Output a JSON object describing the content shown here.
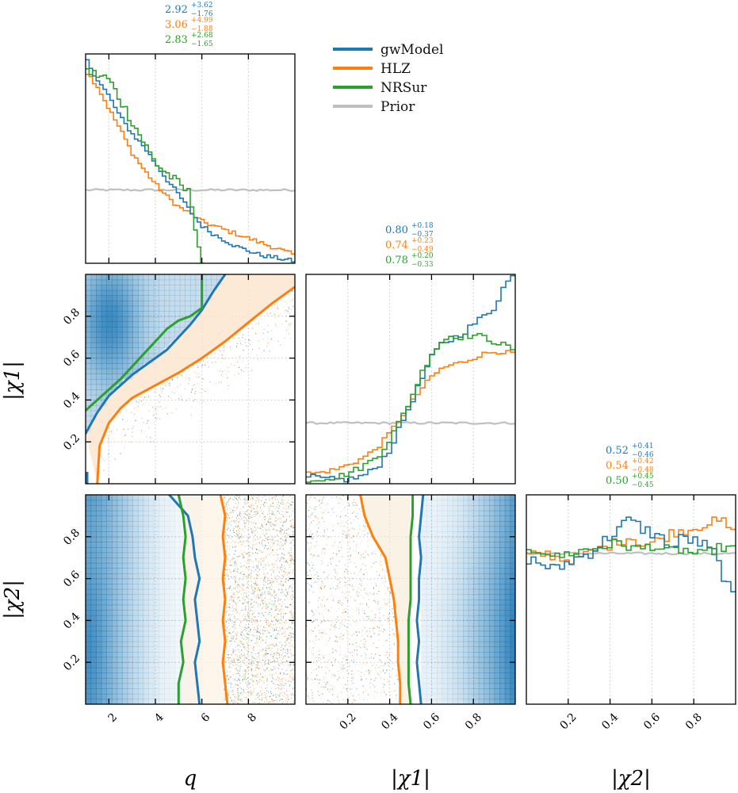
{
  "chart_data": {
    "type": "corner",
    "parameters": [
      {
        "name": "q",
        "label": "q",
        "range": [
          1,
          10
        ],
        "ticks": [
          "2",
          "4",
          "6",
          "8"
        ],
        "tick_values": [
          2,
          4,
          6,
          8
        ]
      },
      {
        "name": "chi1",
        "label": "|χ1|",
        "range": [
          0,
          1
        ],
        "ticks": [
          "0.2",
          "0.4",
          "0.6",
          "0.8"
        ],
        "tick_values": [
          0.2,
          0.4,
          0.6,
          0.8
        ]
      },
      {
        "name": "chi2",
        "label": "|χ2|",
        "range": [
          0,
          1
        ],
        "ticks": [
          "0.2",
          "0.4",
          "0.6",
          "0.8"
        ],
        "tick_values": [
          0.2,
          0.4,
          0.6,
          0.8
        ]
      }
    ],
    "legend": {
      "placement": "top-center",
      "entries": [
        {
          "name": "gwModel",
          "color": "#1f77b4"
        },
        {
          "name": "HLZ",
          "color": "#ff7f0e"
        },
        {
          "name": "NRSur",
          "color": "#2ca02c"
        },
        {
          "name": "Prior",
          "color": "#bfbfbf"
        }
      ]
    },
    "summary_stats": {
      "q": [
        {
          "series": "gwModel",
          "median": "2.92",
          "plus": "+3.62",
          "minus": "−1.76",
          "color": "#1f77b4"
        },
        {
          "series": "HLZ",
          "median": "3.06",
          "plus": "+4.99",
          "minus": "−1.88",
          "color": "#ff7f0e"
        },
        {
          "series": "NRSur",
          "median": "2.83",
          "plus": "+2.68",
          "minus": "−1.65",
          "color": "#2ca02c"
        }
      ],
      "chi1": [
        {
          "series": "gwModel",
          "median": "0.80",
          "plus": "+0.18",
          "minus": "−0.37",
          "color": "#1f77b4"
        },
        {
          "series": "HLZ",
          "median": "0.74",
          "plus": "+0.23",
          "minus": "−0.49",
          "color": "#ff7f0e"
        },
        {
          "series": "NRSur",
          "median": "0.78",
          "plus": "+0.20",
          "minus": "−0.33",
          "color": "#2ca02c"
        }
      ],
      "chi2": [
        {
          "series": "gwModel",
          "median": "0.52",
          "plus": "+0.41",
          "minus": "−0.46",
          "color": "#1f77b4"
        },
        {
          "series": "HLZ",
          "median": "0.54",
          "plus": "+0.42",
          "minus": "−0.48",
          "color": "#ff7f0e"
        },
        {
          "series": "NRSur",
          "median": "0.50",
          "plus": "+0.45",
          "minus": "−0.45",
          "color": "#2ca02c"
        }
      ]
    },
    "histograms": {
      "q": {
        "x": [
          1.0,
          1.5,
          2.0,
          2.5,
          3.0,
          3.5,
          4.0,
          4.5,
          5.0,
          5.5,
          6.0,
          6.5,
          7.0,
          7.5,
          8.0,
          8.5,
          9.0,
          9.5,
          10.0
        ],
        "gwModel": [
          0.98,
          0.88,
          0.8,
          0.7,
          0.62,
          0.56,
          0.48,
          0.4,
          0.33,
          0.25,
          0.18,
          0.14,
          0.11,
          0.08,
          0.06,
          0.04,
          0.03,
          0.02,
          0.01
        ],
        "HLZ": [
          0.92,
          0.85,
          0.74,
          0.64,
          0.53,
          0.45,
          0.38,
          0.32,
          0.27,
          0.24,
          0.2,
          0.18,
          0.16,
          0.14,
          0.12,
          0.1,
          0.08,
          0.06,
          0.04
        ],
        "NRSur": [
          0.92,
          0.9,
          0.88,
          0.78,
          0.68,
          0.58,
          0.48,
          0.43,
          0.38,
          0.33,
          0.0
        ],
        "Prior": 0.35
      },
      "chi1": {
        "x": [
          0.0,
          0.05,
          0.1,
          0.15,
          0.2,
          0.25,
          0.3,
          0.35,
          0.4,
          0.45,
          0.5,
          0.55,
          0.6,
          0.65,
          0.7,
          0.75,
          0.8,
          0.85,
          0.9,
          0.95,
          1.0
        ],
        "gwModel": [
          0.03,
          0.03,
          0.02,
          0.02,
          0.02,
          0.03,
          0.05,
          0.09,
          0.16,
          0.27,
          0.38,
          0.49,
          0.6,
          0.67,
          0.69,
          0.72,
          0.76,
          0.8,
          0.84,
          0.95,
          1.0
        ],
        "HLZ": [
          0.05,
          0.05,
          0.06,
          0.07,
          0.09,
          0.11,
          0.14,
          0.18,
          0.24,
          0.31,
          0.38,
          0.45,
          0.51,
          0.55,
          0.57,
          0.58,
          0.6,
          0.62,
          0.63,
          0.63,
          0.62
        ],
        "NRSur": [
          0.02,
          0.02,
          0.03,
          0.03,
          0.05,
          0.07,
          0.1,
          0.14,
          0.21,
          0.3,
          0.4,
          0.52,
          0.62,
          0.68,
          0.71,
          0.7,
          0.71,
          0.7,
          0.68,
          0.66,
          0.64
        ],
        "Prior": 0.29
      },
      "chi2": {
        "x": [
          0.0,
          0.05,
          0.1,
          0.15,
          0.2,
          0.25,
          0.3,
          0.35,
          0.4,
          0.45,
          0.5,
          0.55,
          0.6,
          0.65,
          0.7,
          0.75,
          0.8,
          0.85,
          0.9,
          0.95,
          1.0
        ],
        "gwModel": [
          0.7,
          0.68,
          0.66,
          0.64,
          0.68,
          0.7,
          0.72,
          0.76,
          0.8,
          0.85,
          0.88,
          0.84,
          0.82,
          0.79,
          0.74,
          0.8,
          0.78,
          0.76,
          0.72,
          0.6,
          0.48
        ],
        "HLZ": [
          0.71,
          0.71,
          0.72,
          0.7,
          0.69,
          0.7,
          0.72,
          0.74,
          0.76,
          0.78,
          0.8,
          0.76,
          0.77,
          0.79,
          0.82,
          0.83,
          0.84,
          0.86,
          0.87,
          0.87,
          0.8
        ],
        "NRSur": [
          0.72,
          0.74,
          0.73,
          0.7,
          0.72,
          0.73,
          0.74,
          0.75,
          0.76,
          0.77,
          0.75,
          0.74,
          0.76,
          0.74,
          0.73,
          0.74,
          0.72,
          0.71,
          0.74,
          0.75,
          0.74
        ],
        "Prior": 0.72
      }
    },
    "contours": {
      "q_chi1": {
        "gwModel": [
          [
            1.0,
            0.24
          ],
          [
            1.5,
            0.34
          ],
          [
            2.0,
            0.42
          ],
          [
            2.5,
            0.47
          ],
          [
            3.0,
            0.52
          ],
          [
            3.5,
            0.56
          ],
          [
            4.0,
            0.6
          ],
          [
            4.5,
            0.64
          ],
          [
            5.0,
            0.7
          ],
          [
            5.5,
            0.76
          ],
          [
            6.0,
            0.83
          ],
          [
            6.5,
            0.92
          ],
          [
            7.0,
            1.0
          ]
        ],
        "HLZ": [
          [
            1.5,
            0.0
          ],
          [
            1.6,
            0.18
          ],
          [
            2.0,
            0.29
          ],
          [
            2.5,
            0.36
          ],
          [
            3.0,
            0.41
          ],
          [
            4.0,
            0.47
          ],
          [
            5.0,
            0.53
          ],
          [
            6.0,
            0.6
          ],
          [
            7.0,
            0.68
          ],
          [
            8.0,
            0.77
          ],
          [
            9.0,
            0.86
          ],
          [
            10.0,
            0.94
          ]
        ],
        "NRSur": [
          [
            1.0,
            0.35
          ],
          [
            1.5,
            0.4
          ],
          [
            2.0,
            0.45
          ],
          [
            2.5,
            0.5
          ],
          [
            3.0,
            0.56
          ],
          [
            3.5,
            0.62
          ],
          [
            4.0,
            0.68
          ],
          [
            4.5,
            0.74
          ],
          [
            5.0,
            0.78
          ],
          [
            5.5,
            0.8
          ],
          [
            6.0,
            0.84
          ],
          [
            6.0,
            1.0
          ]
        ]
      },
      "q_chi2": {
        "gwModel": [
          [
            5.9,
            0.0
          ],
          [
            5.8,
            0.1
          ],
          [
            5.7,
            0.2
          ],
          [
            5.9,
            0.3
          ],
          [
            5.8,
            0.4
          ],
          [
            5.7,
            0.5
          ],
          [
            5.9,
            0.6
          ],
          [
            5.7,
            0.7
          ],
          [
            5.6,
            0.8
          ],
          [
            5.4,
            0.9
          ],
          [
            4.6,
            1.0
          ]
        ],
        "HLZ": [
          [
            7.1,
            0.0
          ],
          [
            7.0,
            0.1
          ],
          [
            6.9,
            0.2
          ],
          [
            7.0,
            0.3
          ],
          [
            6.9,
            0.4
          ],
          [
            7.0,
            0.5
          ],
          [
            6.9,
            0.6
          ],
          [
            7.0,
            0.7
          ],
          [
            6.9,
            0.8
          ],
          [
            7.0,
            0.9
          ],
          [
            6.8,
            1.0
          ]
        ],
        "NRSur": [
          [
            5.0,
            0.0
          ],
          [
            5.0,
            0.1
          ],
          [
            5.2,
            0.2
          ],
          [
            5.1,
            0.3
          ],
          [
            5.3,
            0.4
          ],
          [
            5.2,
            0.5
          ],
          [
            5.3,
            0.6
          ],
          [
            5.2,
            0.7
          ],
          [
            5.3,
            0.8
          ],
          [
            5.2,
            0.9
          ],
          [
            5.0,
            1.0
          ]
        ]
      },
      "chi1_chi2": {
        "gwModel": [
          [
            0.55,
            0.0
          ],
          [
            0.54,
            0.1
          ],
          [
            0.53,
            0.2
          ],
          [
            0.54,
            0.3
          ],
          [
            0.53,
            0.4
          ],
          [
            0.54,
            0.5
          ],
          [
            0.54,
            0.6
          ],
          [
            0.55,
            0.7
          ],
          [
            0.54,
            0.8
          ],
          [
            0.55,
            0.9
          ],
          [
            0.56,
            1.0
          ]
        ],
        "HLZ": [
          [
            0.45,
            0.0
          ],
          [
            0.45,
            0.1
          ],
          [
            0.44,
            0.2
          ],
          [
            0.44,
            0.3
          ],
          [
            0.43,
            0.4
          ],
          [
            0.42,
            0.5
          ],
          [
            0.4,
            0.6
          ],
          [
            0.38,
            0.7
          ],
          [
            0.32,
            0.8
          ],
          [
            0.28,
            0.9
          ],
          [
            0.26,
            1.0
          ]
        ],
        "NRSur": [
          [
            0.5,
            0.0
          ],
          [
            0.49,
            0.1
          ],
          [
            0.49,
            0.2
          ],
          [
            0.49,
            0.3
          ],
          [
            0.49,
            0.4
          ],
          [
            0.5,
            0.5
          ],
          [
            0.5,
            0.6
          ],
          [
            0.5,
            0.7
          ],
          [
            0.5,
            0.8
          ],
          [
            0.51,
            0.9
          ],
          [
            0.51,
            1.0
          ]
        ]
      }
    }
  }
}
